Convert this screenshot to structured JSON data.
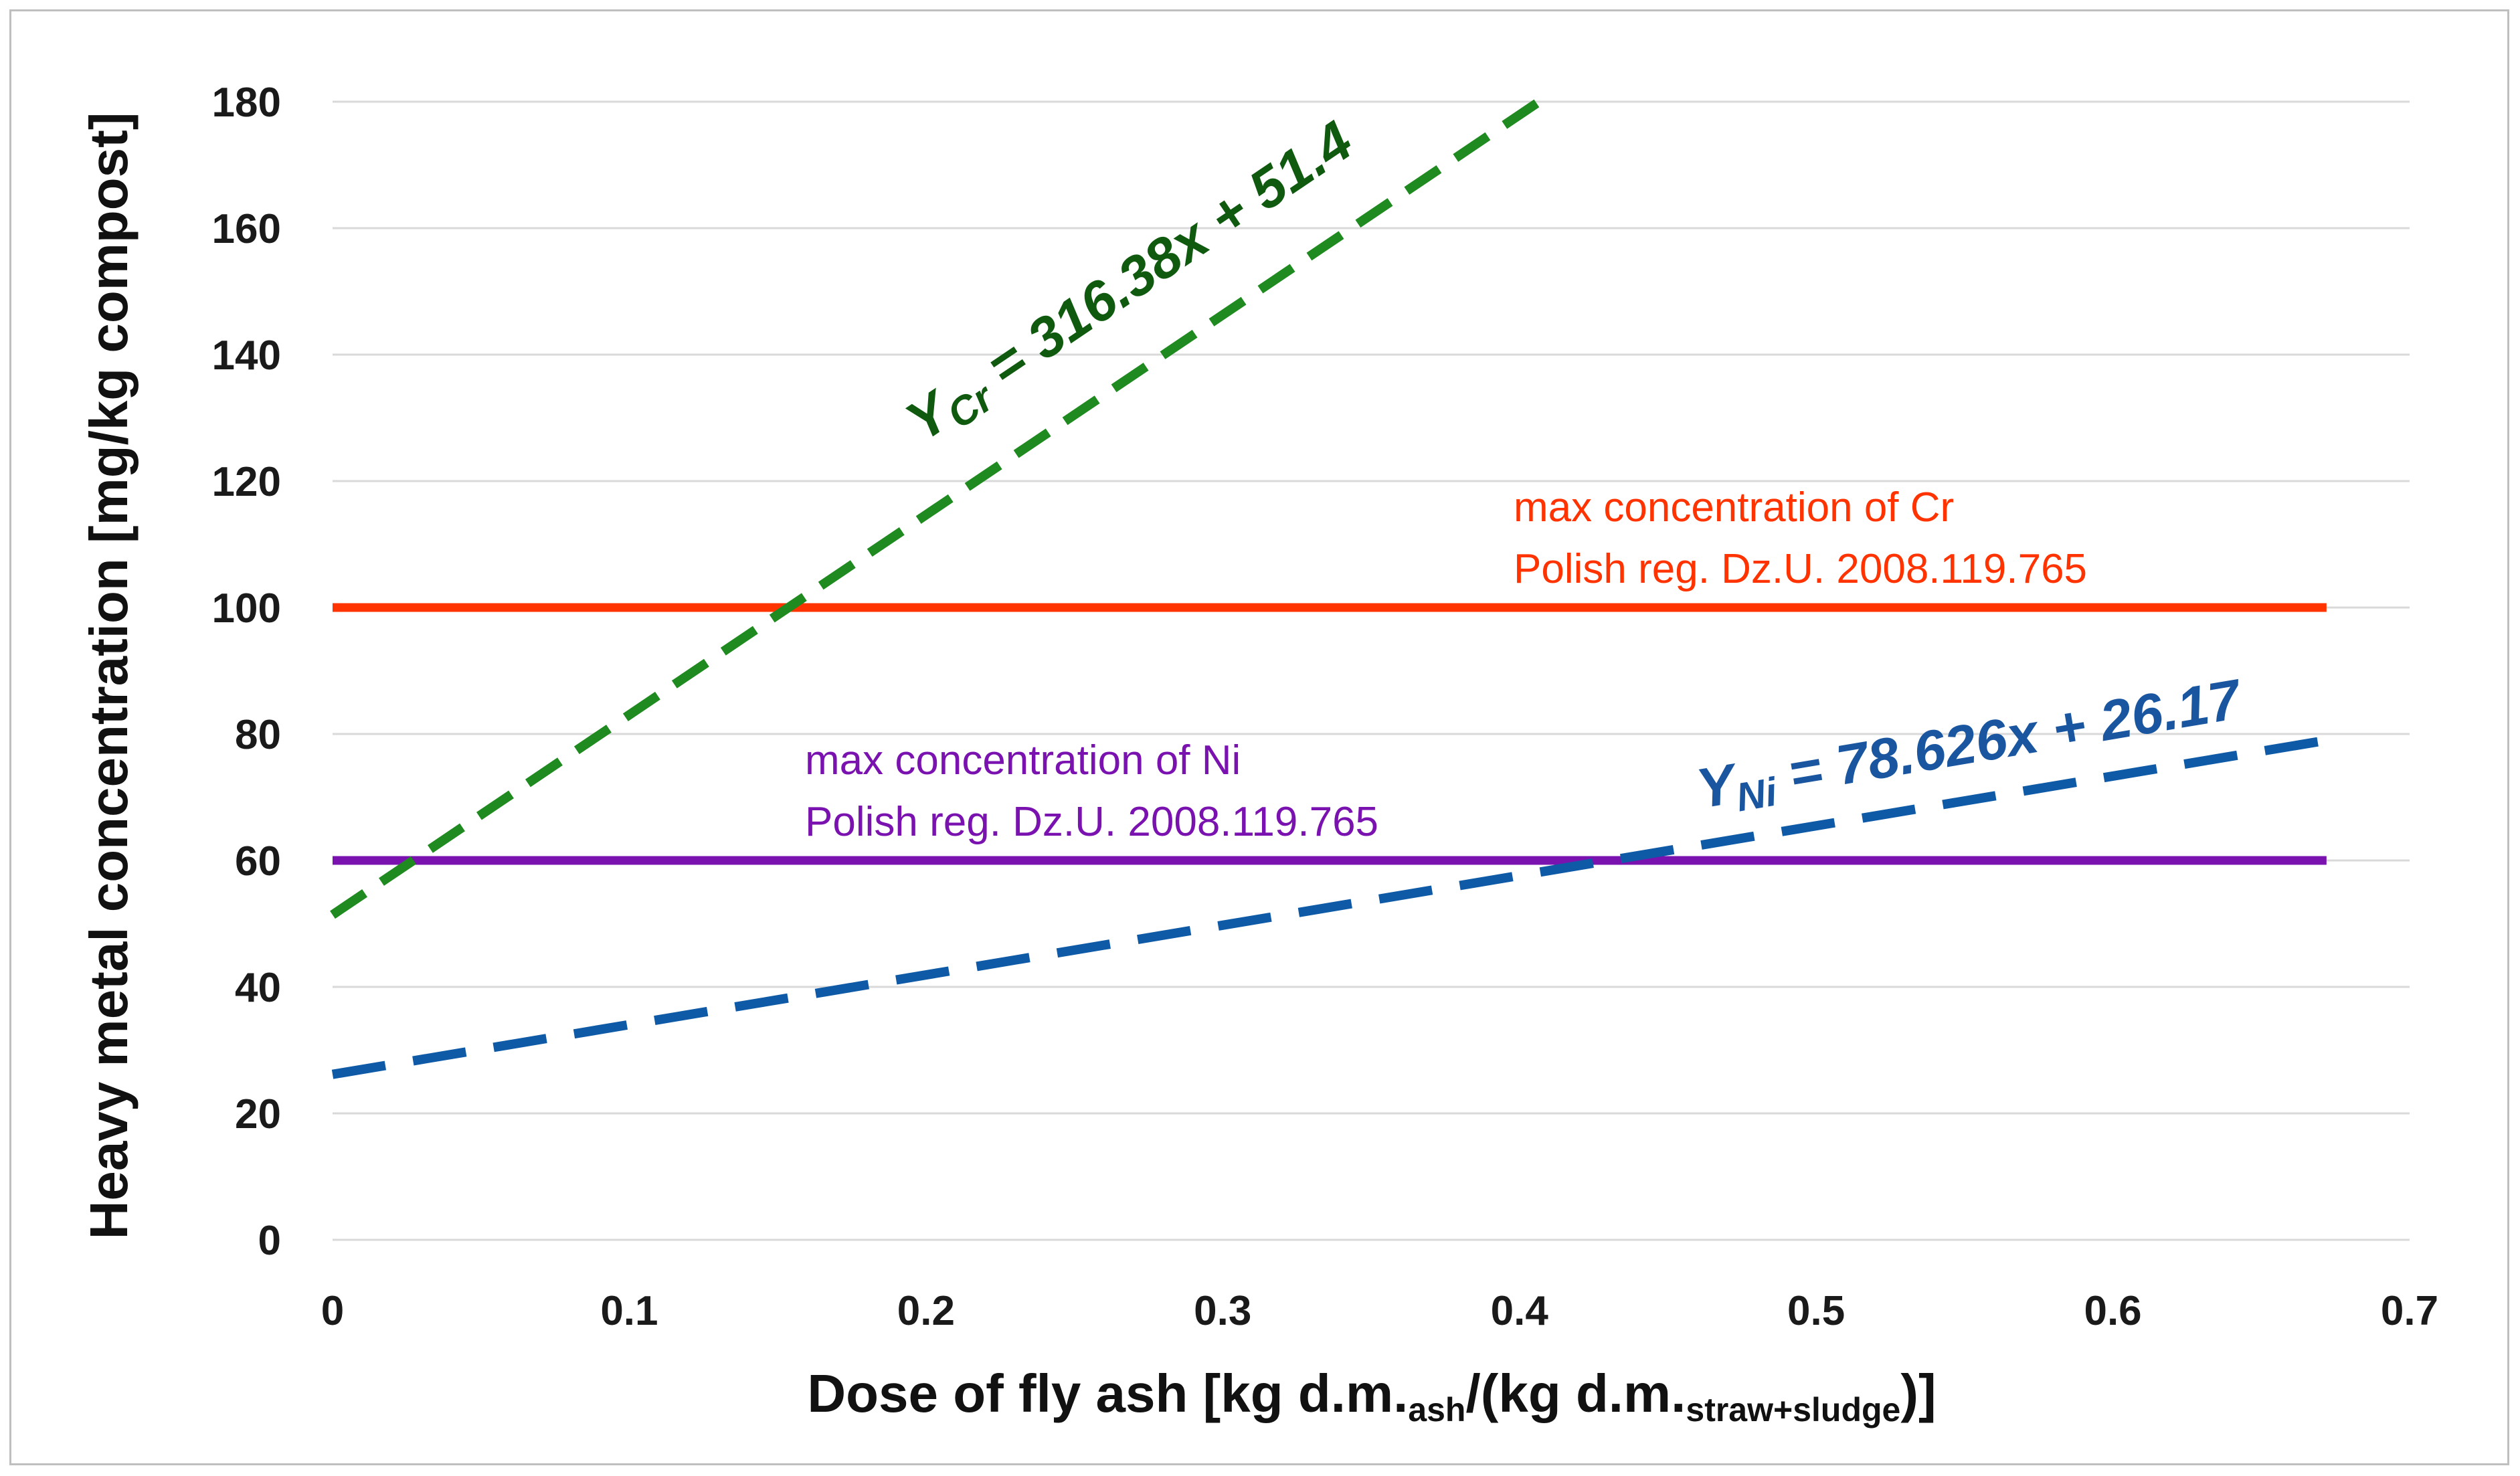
{
  "chart_data": {
    "type": "line",
    "xlabel_parts": {
      "pre": "Dose of fly ash [kg d.m.",
      "sub1": "ash",
      "mid": "/(kg d.m.",
      "sub2": "straw+sludge",
      "post": ")]"
    },
    "ylabel": "Heavy metal concentration [mg/kg compost]",
    "xlim": [
      0,
      0.7
    ],
    "ylim": [
      0,
      180
    ],
    "xticks": [
      "0",
      "0.1",
      "0.2",
      "0.3",
      "0.4",
      "0.5",
      "0.6",
      "0.7"
    ],
    "yticks": [
      "0",
      "20",
      "40",
      "60",
      "80",
      "100",
      "120",
      "140",
      "160",
      "180"
    ],
    "grid": "horizontal",
    "series": [
      {
        "id": "cr_trend",
        "style": "dashed",
        "color": "#1f8a1f",
        "slope": 316.38,
        "intercept": 51.4,
        "x": [
          0,
          0.4066
        ],
        "y": [
          51.4,
          180
        ],
        "label_prefix": "Y",
        "label_sub": "Cr",
        "label_rest": " = 316.38x + 51.4",
        "label_color": "#0f5a0f"
      },
      {
        "id": "ni_trend",
        "style": "dashed",
        "color": "#0f5aa6",
        "slope": 78.626,
        "intercept": 26.17,
        "x": [
          0,
          0.672
        ],
        "y": [
          26.17,
          79.0
        ],
        "label_prefix": "Y",
        "label_sub": "Ni",
        "label_rest": " = 78.626x + 26.17",
        "label_color": "#1a56a0"
      },
      {
        "id": "cr_limit",
        "style": "solid",
        "color": "#ff3300",
        "x": [
          0,
          0.672
        ],
        "y": [
          100,
          100
        ],
        "annotation": [
          "max concentration of Cr",
          "Polish reg. Dz.U. 2008.119.765"
        ]
      },
      {
        "id": "ni_limit",
        "style": "solid",
        "color": "#7a12b0",
        "x": [
          0,
          0.672
        ],
        "y": [
          60,
          60
        ],
        "annotation": [
          "max concentration of Ni",
          "Polish reg. Dz.U. 2008.119.765"
        ]
      }
    ]
  }
}
